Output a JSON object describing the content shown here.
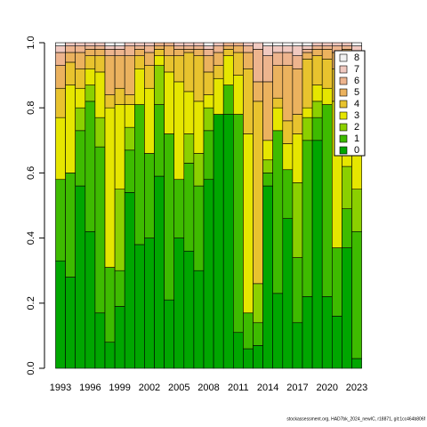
{
  "chart_data": {
    "type": "stacked-bar",
    "categories": [
      "1993",
      null,
      null,
      "1996",
      null,
      null,
      "1999",
      null,
      null,
      "2002",
      null,
      null,
      "2005",
      null,
      null,
      "2008",
      null,
      null,
      "2011",
      null,
      null,
      "2014",
      null,
      null,
      "2017",
      null,
      null,
      "2020",
      null,
      null,
      "2023"
    ],
    "series": [
      {
        "name": "0",
        "color": "#00A600",
        "values": [
          0.33,
          0.28,
          0.56,
          0.42,
          0.17,
          0.08,
          0.19,
          0.54,
          0.38,
          0.4,
          0.59,
          0.21,
          0.4,
          0.36,
          0.3,
          0.58,
          0.78,
          0.78,
          0.11,
          0.06,
          0.07,
          0.56,
          0.23,
          0.46,
          0.14,
          0.22,
          0.7,
          0.22,
          0.16,
          0.37,
          0.03
        ]
      },
      {
        "name": "1",
        "color": "#3EBB00",
        "values": [
          0.25,
          0.32,
          0.17,
          0.4,
          0.51,
          0.23,
          0.11,
          0.13,
          0.43,
          0.26,
          0.22,
          0.51,
          0.18,
          0.27,
          0.26,
          0.15,
          0.0,
          0.09,
          0.67,
          0.11,
          0.07,
          0.04,
          0.5,
          0.15,
          0.2,
          0.48,
          0.07,
          0.59,
          0.21,
          0.12,
          0.39
        ]
      },
      {
        "name": "2",
        "color": "#8BD000",
        "values": [
          0.0,
          0.0,
          0.07,
          0.05,
          0.09,
          0.0,
          0.25,
          0.07,
          0.0,
          0.0,
          0.12,
          0.0,
          0.0,
          0.09,
          0.1,
          0.07,
          0.0,
          0.0,
          0.0,
          0.0,
          0.12,
          0.04,
          0.0,
          0.0,
          0.23,
          0.07,
          0.05,
          0.0,
          0.0,
          0.13,
          0.13
        ]
      },
      {
        "name": "3",
        "color": "#E6E600",
        "values": [
          0.19,
          0.27,
          0.06,
          0.05,
          0.14,
          0.49,
          0.26,
          0.07,
          0.11,
          0.2,
          0.03,
          0.19,
          0.3,
          0.13,
          0.16,
          0.04,
          0.11,
          0.09,
          0.12,
          0.55,
          0.0,
          0.06,
          0.07,
          0.08,
          0.15,
          0.03,
          0.05,
          0.05,
          0.45,
          0.26,
          0.15
        ]
      },
      {
        "name": "4",
        "color": "#E8C32E",
        "values": [
          0.09,
          0.07,
          0.06,
          0.04,
          0.05,
          0.04,
          0.05,
          0.03,
          0.04,
          0.07,
          0.02,
          0.05,
          0.08,
          0.12,
          0.14,
          0.07,
          0.04,
          0.02,
          0.07,
          0.2,
          0.56,
          0.0,
          0.03,
          0.07,
          0.06,
          0.15,
          0.09,
          0.09,
          0.1,
          0.07,
          0.1
        ]
      },
      {
        "name": "5",
        "color": "#EBB25E",
        "values": [
          0.07,
          0.03,
          0.05,
          0.02,
          0.02,
          0.12,
          0.1,
          0.12,
          0.02,
          0.04,
          0.01,
          0.03,
          0.02,
          0.01,
          0.02,
          0.05,
          0.04,
          0.01,
          0.02,
          0.05,
          0.06,
          0.18,
          0.1,
          0.17,
          0.14,
          0.02,
          0.02,
          0.03,
          0.05,
          0.03,
          0.12
        ]
      },
      {
        "name": "6",
        "color": "#EDB48E",
        "values": [
          0.04,
          0.02,
          0.02,
          0.01,
          0.01,
          0.02,
          0.02,
          0.03,
          0.01,
          0.02,
          0.01,
          0.01,
          0.01,
          0.01,
          0.01,
          0.02,
          0.02,
          0.01,
          0.01,
          0.02,
          0.1,
          0.08,
          0.04,
          0.04,
          0.04,
          0.01,
          0.01,
          0.01,
          0.02,
          0.01,
          0.05
        ]
      },
      {
        "name": "7",
        "color": "#F0C9C0",
        "values": [
          0.02,
          0.01,
          0.01,
          0.01,
          0.01,
          0.01,
          0.01,
          0.01,
          0.01,
          0.01,
          0.0,
          0.0,
          0.01,
          0.01,
          0.01,
          0.01,
          0.01,
          0.0,
          0.0,
          0.01,
          0.02,
          0.03,
          0.02,
          0.02,
          0.03,
          0.01,
          0.01,
          0.01,
          0.01,
          0.01,
          0.02
        ]
      },
      {
        "name": "8",
        "color": "#F2F2F2",
        "values": [
          0.01,
          0.0,
          0.0,
          0.0,
          0.0,
          0.01,
          0.01,
          0.0,
          0.0,
          0.0,
          0.0,
          0.0,
          0.0,
          0.0,
          0.0,
          0.01,
          0.0,
          0.0,
          0.0,
          0.0,
          0.0,
          0.01,
          0.01,
          0.01,
          0.01,
          0.01,
          0.0,
          0.0,
          0.0,
          0.0,
          0.01
        ]
      }
    ],
    "ylim": [
      0,
      1
    ],
    "yticks": [
      {
        "value": 0,
        "label": "0.0"
      },
      0.2,
      0.4,
      0.6,
      0.8,
      {
        "value": 1,
        "label": "1.0"
      }
    ],
    "legend": "top-right",
    "footnote": "stockassessment.org, HAD7bk_2024_newIC, r18871, git:1cc464b806f"
  }
}
